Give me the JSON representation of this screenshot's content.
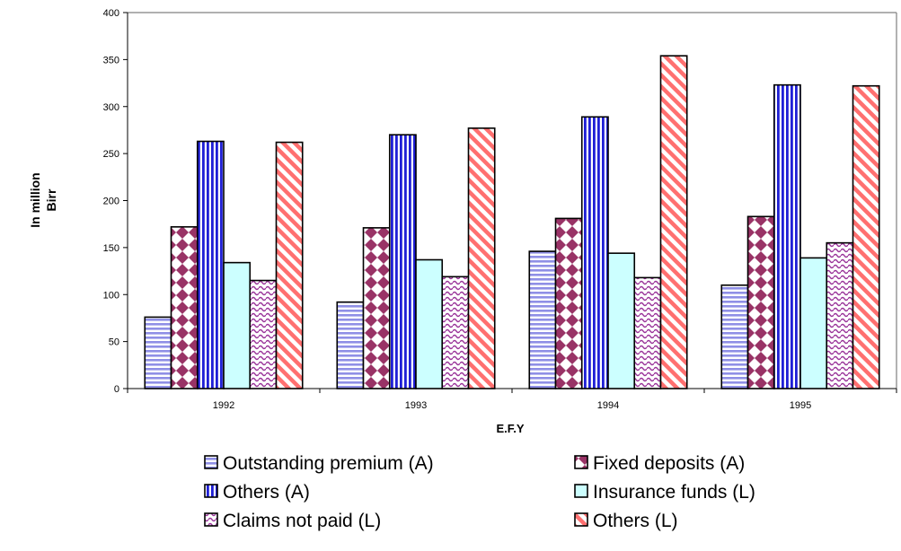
{
  "chart_data": {
    "type": "bar",
    "title": "",
    "xlabel": "E.F.Y",
    "ylabel": [
      "In million",
      "Birr"
    ],
    "categories": [
      "1992",
      "1993",
      "1994",
      "1995"
    ],
    "ylim": [
      0,
      400
    ],
    "yticks": [
      0,
      50,
      100,
      150,
      200,
      250,
      300,
      350,
      400
    ],
    "grid": false,
    "legend_position": "bottom",
    "series": [
      {
        "name": "Outstanding premium (A)",
        "values": [
          76,
          92,
          146,
          110
        ],
        "color": "#8f8fe6",
        "pattern": "hstripes"
      },
      {
        "name": "Fixed deposits (A)",
        "values": [
          172,
          171,
          181,
          183
        ],
        "color": "#993366",
        "pattern": "diamonds"
      },
      {
        "name": "Others (A)",
        "values": [
          263,
          270,
          289,
          323
        ],
        "color": "#1f1fd6",
        "pattern": "vstripes"
      },
      {
        "name": "Insurance funds (L)",
        "values": [
          134,
          137,
          144,
          139
        ],
        "color": "#ccffff",
        "pattern": "solid"
      },
      {
        "name": "Claims not paid (L)",
        "values": [
          115,
          119,
          118,
          155
        ],
        "color": "#993399",
        "pattern": "waves"
      },
      {
        "name": "Others (L)",
        "values": [
          262,
          277,
          354,
          322
        ],
        "color": "#ff7070",
        "pattern": "dstripes"
      }
    ]
  }
}
